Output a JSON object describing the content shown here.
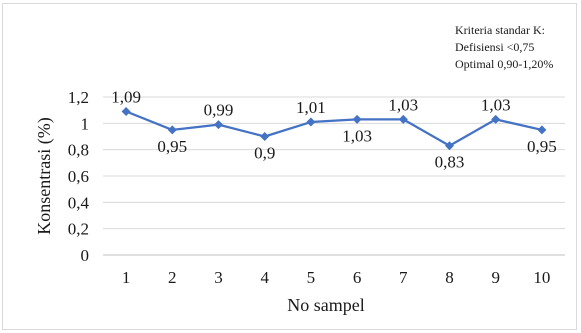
{
  "chart_data": {
    "type": "line",
    "x": [
      "1",
      "2",
      "3",
      "4",
      "5",
      "6",
      "7",
      "8",
      "9",
      "10"
    ],
    "series": [
      {
        "values": [
          1.09,
          0.95,
          0.99,
          0.9,
          1.01,
          1.03,
          1.03,
          0.83,
          1.03,
          0.95
        ],
        "labels": [
          "1,09",
          "0,95",
          "0,99",
          "0,9",
          "1,01",
          "1,03",
          "1,03",
          "0,83",
          "1,03",
          "0,95"
        ]
      }
    ],
    "xlabel": "No sampel",
    "ylabel": "Konsentrasi (%)",
    "ylim": [
      0,
      1.2
    ],
    "yticks": [
      0,
      0.2,
      0.4,
      0.6,
      0.8,
      1.0,
      1.2
    ],
    "ytick_labels": [
      "0",
      "0,2",
      "0,4",
      "0,6",
      "0,8",
      "1",
      "1,2"
    ],
    "grid": "horizontal",
    "line_color": "#4472c4",
    "marker": "diamond"
  },
  "note": {
    "line1": "Kriteria  standar K:",
    "line2": "Defisiensi  <0,75",
    "line3": "Optimal 0,90-1,20%"
  }
}
